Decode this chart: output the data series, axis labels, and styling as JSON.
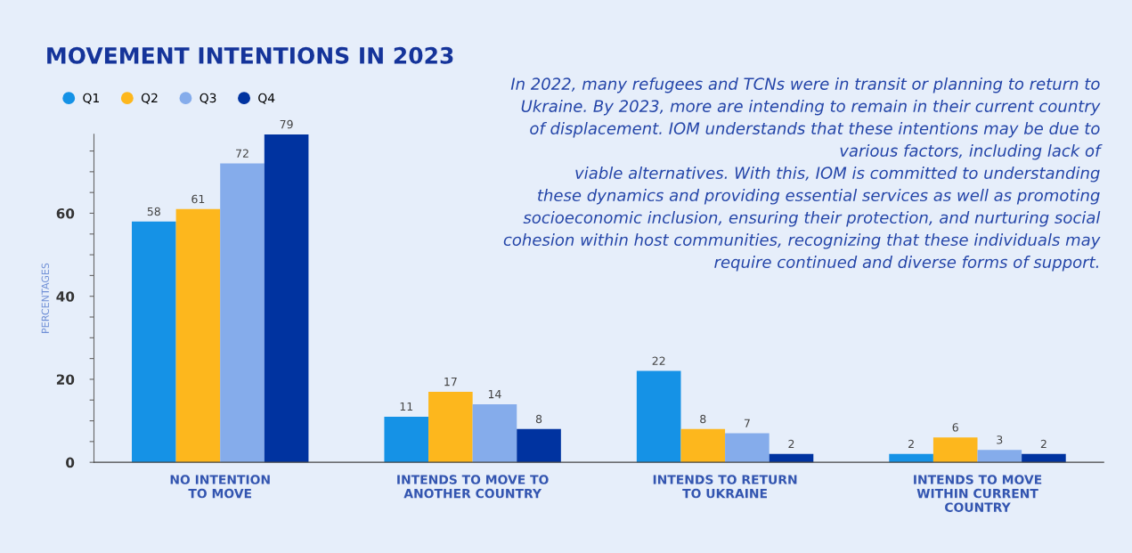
{
  "chart_data": {
    "type": "bar",
    "title": "MOVEMENT INTENTIONS IN 2023",
    "ylabel": "PERCENTAGES",
    "categories": [
      "NO INTENTION\nTO MOVE",
      "INTENDS TO MOVE TO\nANOTHER COUNTRY",
      "INTENDS TO RETURN\nTO UKRAINE",
      "INTENDS TO MOVE\nWITHIN CURRENT\nCOUNTRY"
    ],
    "series": [
      {
        "name": "Q1",
        "color": "#1592e6",
        "values": [
          58,
          11,
          22,
          2
        ]
      },
      {
        "name": "Q2",
        "color": "#fdb71d",
        "values": [
          61,
          17,
          8,
          6
        ]
      },
      {
        "name": "Q3",
        "color": "#85aceb",
        "values": [
          72,
          14,
          7,
          3
        ]
      },
      {
        "name": "Q4",
        "color": "#0033a0",
        "values": [
          79,
          8,
          2,
          2
        ]
      }
    ],
    "ylim": [
      0,
      79
    ],
    "yticks": [
      0,
      {
        "value": 5,
        "label": null
      },
      {
        "value": 10,
        "label": null
      },
      {
        "value": 15,
        "label": null
      },
      20,
      {
        "value": 25,
        "label": null
      },
      {
        "value": 30,
        "label": null
      },
      {
        "value": 35,
        "label": null
      },
      40,
      {
        "value": 45,
        "label": null
      },
      {
        "value": 50,
        "label": null
      },
      {
        "value": 55,
        "label": null
      },
      60,
      {
        "value": 65,
        "label": null
      },
      {
        "value": 70,
        "label": null
      },
      {
        "value": 75,
        "label": null
      }
    ],
    "data_labels": true,
    "legend": "top left",
    "grid": false,
    "annotations": [
      "In 2022, many refugees and TCNs were in transit or planning to return to\nUkraine. By 2023, more are intending to remain in their current country\nof displacement. IOM understands that these intentions may be due to\nvarious factors, including lack of\nviable alternatives. With this, IOM is committed to understanding\nthese dynamics and providing essential services as well as promoting\nsocioeconomic inclusion, ensuring their protection, and nurturing social\ncohesion within host communities, recognizing that these individuals may\nrequire continued and diverse forms of support."
    ]
  }
}
